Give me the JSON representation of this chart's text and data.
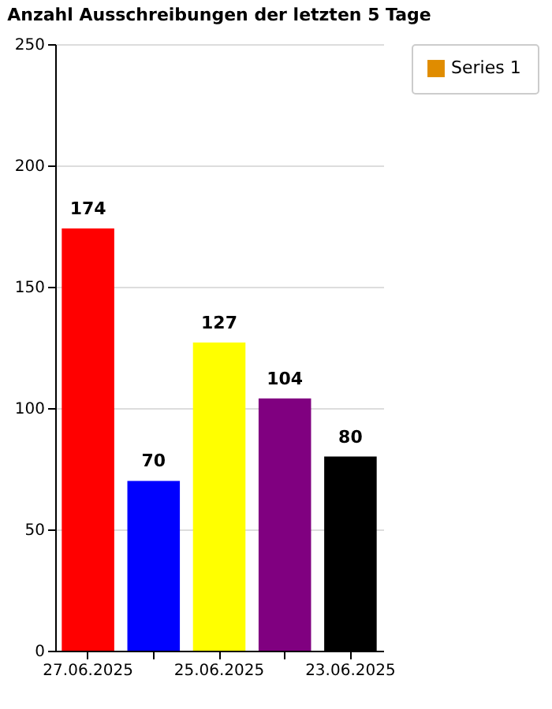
{
  "chart_data": {
    "type": "bar",
    "title": "Anzahl Ausschreibungen der letzten 5 Tage",
    "categories": [
      "27.06.2025",
      null,
      "25.06.2025",
      null,
      "23.06.2025"
    ],
    "series": [
      {
        "name": "Series 1",
        "color": "#e08c00",
        "colors": [
          "#ff0000",
          "#0000ff",
          "#ffff00",
          "#800080",
          "#000000"
        ],
        "values": [
          174,
          70,
          127,
          104,
          80
        ]
      }
    ],
    "ylim": [
      0,
      250
    ],
    "yticks": [
      0,
      50,
      100,
      150,
      200,
      250
    ],
    "grid": "y",
    "legend": "top right",
    "data_labels": true
  }
}
